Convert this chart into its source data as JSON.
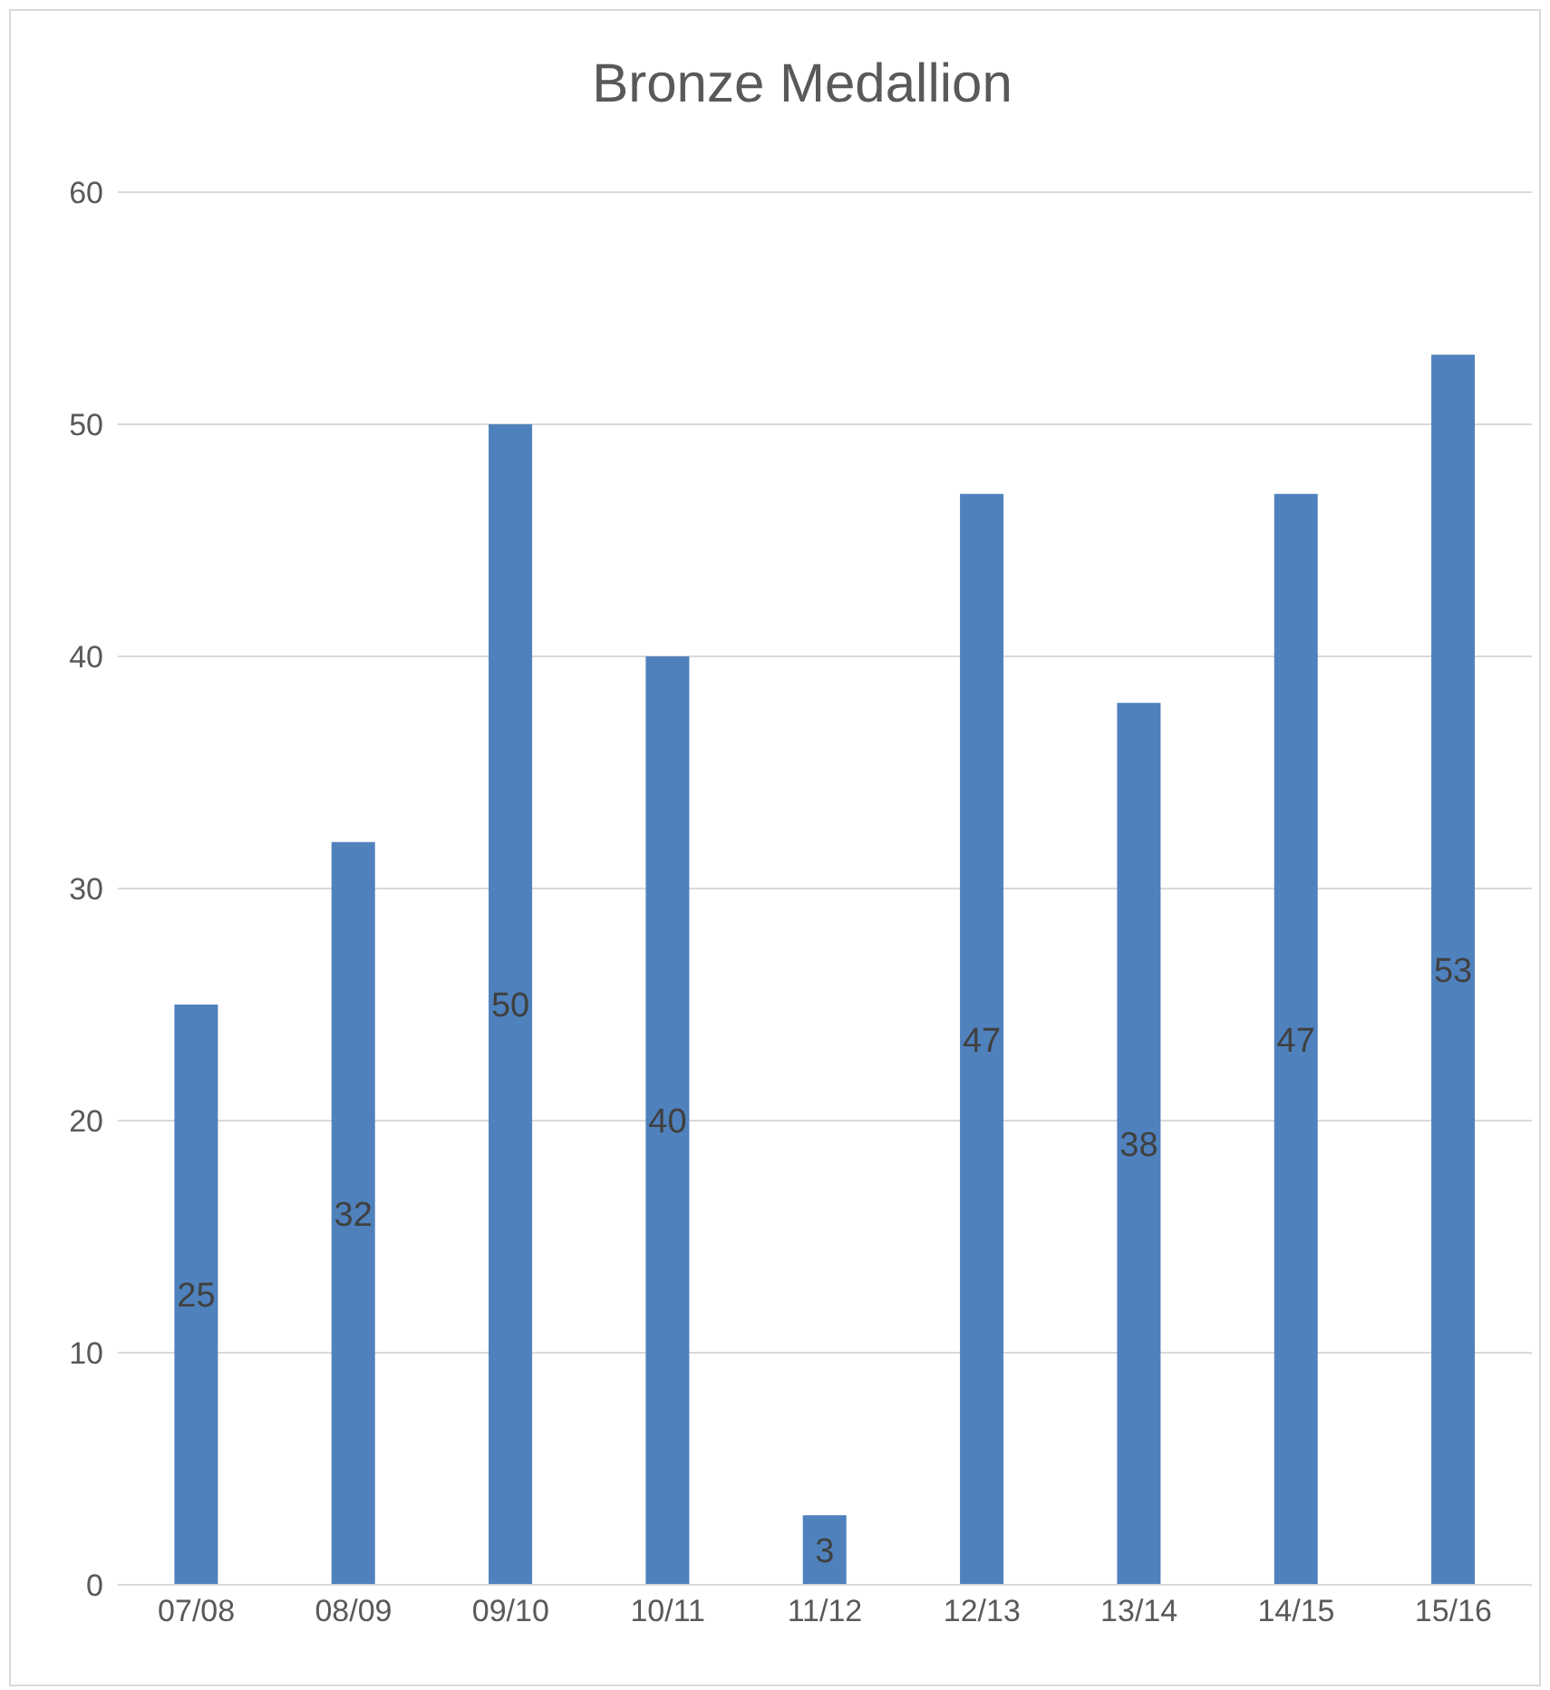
{
  "chart_data": {
    "type": "bar",
    "title": "Bronze Medallion",
    "categories": [
      "07/08",
      "08/09",
      "09/10",
      "10/11",
      "11/12",
      "12/13",
      "13/14",
      "14/15",
      "15/16"
    ],
    "values": [
      25,
      32,
      50,
      40,
      3,
      47,
      38,
      47,
      53
    ],
    "color": "#4f81bd",
    "ylim": [
      0,
      60
    ],
    "yticks": [
      0,
      10,
      20,
      30,
      40,
      50,
      60
    ],
    "grid": "y",
    "data_labels": true
  }
}
